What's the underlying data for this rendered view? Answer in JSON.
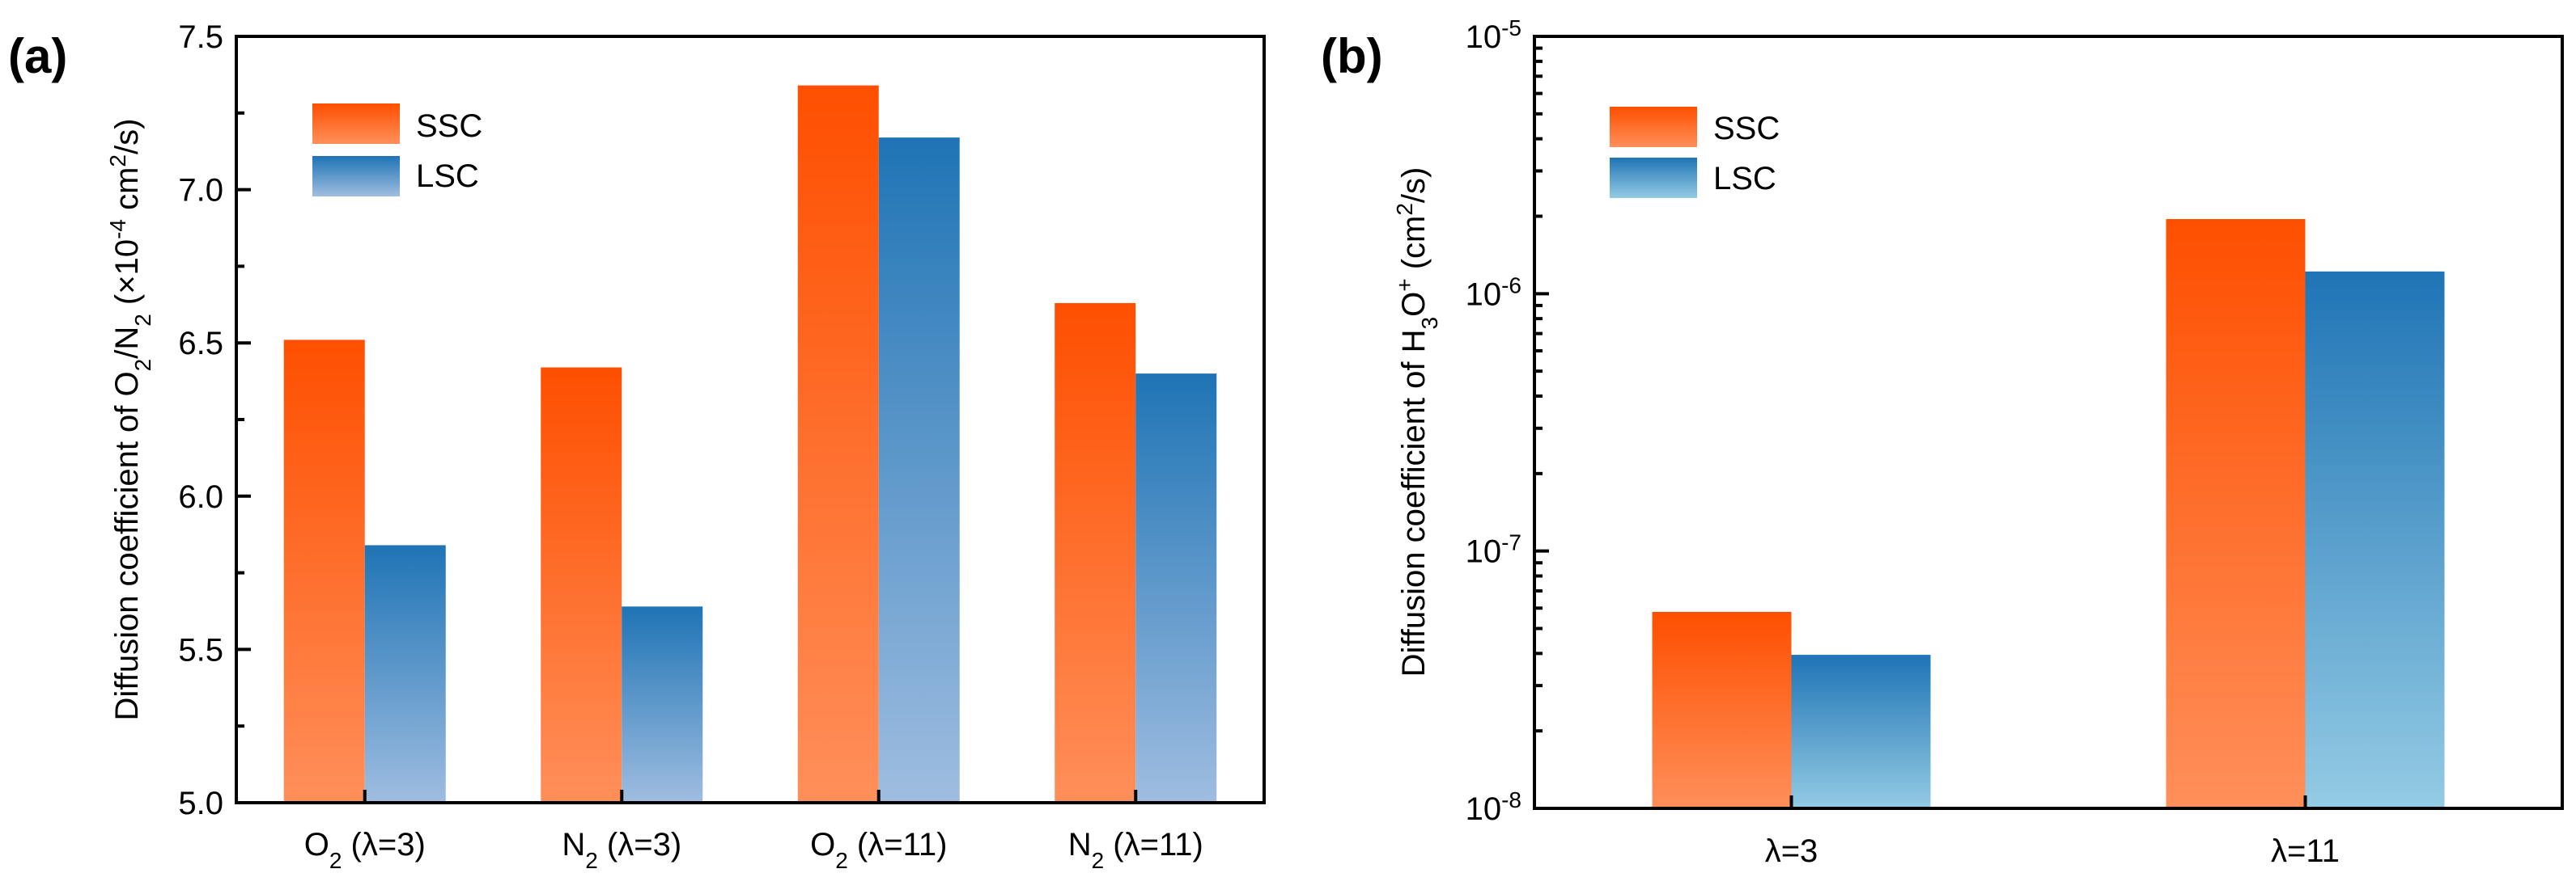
{
  "colors": {
    "ssc_top": "#fe4f00",
    "ssc_bottom": "#ff8f5a",
    "lsc_a_top": "#1f74b5",
    "lsc_a_bottom": "#9fbde0",
    "lsc_b_top": "#1f74b5",
    "lsc_b_bottom": "#94cbe4"
  },
  "chart_data": [
    {
      "type": "bar",
      "panel_label": "(a)",
      "categories": [
        "O",
        "N",
        "O",
        "N"
      ],
      "category_subscripts": [
        "2",
        "2",
        "2",
        "2"
      ],
      "category_suffixes": [
        " (λ=3)",
        " (λ=3)",
        " (λ=11)",
        " (λ=11)"
      ],
      "series": [
        {
          "name": "SSC",
          "values": [
            6.51,
            6.42,
            7.34,
            6.63
          ]
        },
        {
          "name": "LSC",
          "values": [
            5.84,
            5.64,
            7.17,
            6.4
          ]
        }
      ],
      "ylim": [
        5.0,
        7.5
      ],
      "yscale": "linear",
      "yticks": [
        "5.0",
        "5.5",
        "6.0",
        "6.5",
        "7.0",
        "7.5"
      ],
      "ylabel": {
        "p1": "Diffusion coefficient of O",
        "s1": "2",
        "p2": "/N",
        "s2": "2",
        "p3": " (×10",
        "sup1": "-4",
        "p4": " cm",
        "sup2": "2",
        "p5": "/s)"
      },
      "legend": [
        "SSC",
        "LSC"
      ],
      "legend_position": "top-left"
    },
    {
      "type": "bar",
      "panel_label": "(b)",
      "categories": [
        "λ=3",
        "λ=11"
      ],
      "series": [
        {
          "name": "SSC",
          "values": [
            5.8e-08,
            1.95e-06
          ]
        },
        {
          "name": "LSC",
          "values": [
            3.95e-08,
            1.22e-06
          ]
        }
      ],
      "ylim": [
        1e-08,
        1e-05
      ],
      "yscale": "log",
      "ytick_base": "10",
      "ytick_exponents": [
        "-8",
        "-7",
        "-6",
        "-5"
      ],
      "ylabel": {
        "p1": "Diffusion coefficient of H",
        "s1": "3",
        "p2": "O",
        "sup1": "+",
        "p3": " (cm",
        "sup2": "2",
        "p4": "/s)"
      },
      "legend": [
        "SSC",
        "LSC"
      ],
      "legend_position": "top-left"
    }
  ]
}
